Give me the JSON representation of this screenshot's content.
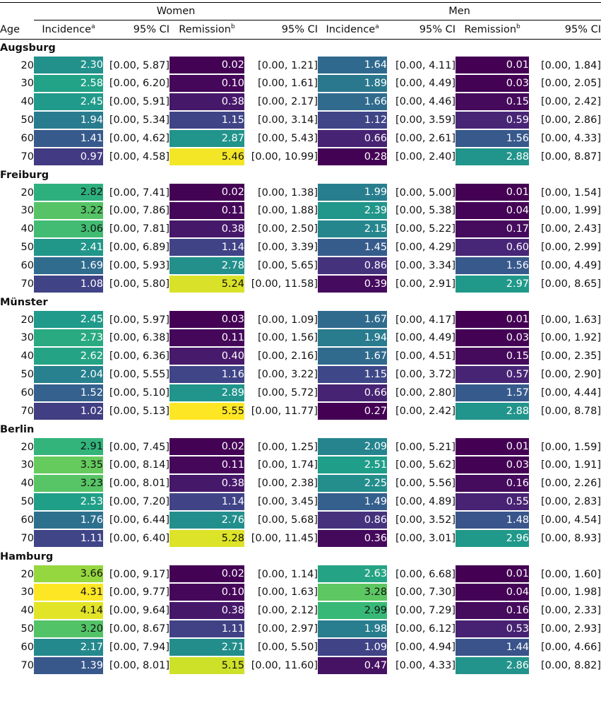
{
  "header": {
    "groups": [
      "Women",
      "Men"
    ],
    "columns": {
      "age": "Age",
      "incidence": "Incidence",
      "incidence_sup": "a",
      "ci": "95% CI",
      "remission": "Remission",
      "remission_sup": "b"
    }
  },
  "chart_data": {
    "type": "table",
    "title": "",
    "row_groups": [
      "Augsburg",
      "Freiburg",
      "Münster",
      "Berlin",
      "Hamburg"
    ],
    "ages": [
      "20",
      "30",
      "40",
      "50",
      "60",
      "70"
    ],
    "color_encoding": {
      "incidence_range": [
        0.27,
        4.31
      ],
      "remission_range": [
        0.01,
        5.55
      ],
      "palette": [
        "#440154",
        "#482878",
        "#3e4989",
        "#31688e",
        "#26828e",
        "#1f9e89",
        "#35b779",
        "#6ece58",
        "#b5de2b",
        "#fde725"
      ]
    },
    "rows": [
      {
        "city": "Augsburg",
        "rows": [
          {
            "age": "20",
            "w_inc": "2.30",
            "w_inc_ci": "[0.00, 5.87]",
            "w_rem": "0.02",
            "w_rem_ci": "[0.00, 1.21]",
            "m_inc": "1.64",
            "m_inc_ci": "[0.00, 4.11]",
            "m_rem": "0.01",
            "m_rem_ci": "[0.00, 1.84]"
          },
          {
            "age": "30",
            "w_inc": "2.58",
            "w_inc_ci": "[0.00, 6.20]",
            "w_rem": "0.10",
            "w_rem_ci": "[0.00, 1.61]",
            "m_inc": "1.89",
            "m_inc_ci": "[0.00, 4.49]",
            "m_rem": "0.03",
            "m_rem_ci": "[0.00, 2.05]"
          },
          {
            "age": "40",
            "w_inc": "2.45",
            "w_inc_ci": "[0.00, 5.91]",
            "w_rem": "0.38",
            "w_rem_ci": "[0.00, 2.17]",
            "m_inc": "1.66",
            "m_inc_ci": "[0.00, 4.46]",
            "m_rem": "0.15",
            "m_rem_ci": "[0.00, 2.42]"
          },
          {
            "age": "50",
            "w_inc": "1.94",
            "w_inc_ci": "[0.00, 5.34]",
            "w_rem": "1.15",
            "w_rem_ci": "[0.00, 3.14]",
            "m_inc": "1.12",
            "m_inc_ci": "[0.00, 3.59]",
            "m_rem": "0.59",
            "m_rem_ci": "[0.00, 2.86]"
          },
          {
            "age": "60",
            "w_inc": "1.41",
            "w_inc_ci": "[0.00, 4.62]",
            "w_rem": "2.87",
            "w_rem_ci": "[0.00, 5.43]",
            "m_inc": "0.66",
            "m_inc_ci": "[0.00, 2.61]",
            "m_rem": "1.56",
            "m_rem_ci": "[0.00, 4.33]"
          },
          {
            "age": "70",
            "w_inc": "0.97",
            "w_inc_ci": "[0.00, 4.58]",
            "w_rem": "5.46",
            "w_rem_ci": "[0.00, 10.99]",
            "m_inc": "0.28",
            "m_inc_ci": "[0.00, 2.40]",
            "m_rem": "2.88",
            "m_rem_ci": "[0.00, 8.87]"
          }
        ]
      },
      {
        "city": "Freiburg",
        "rows": [
          {
            "age": "20",
            "w_inc": "2.82",
            "w_inc_ci": "[0.00, 7.41]",
            "w_rem": "0.02",
            "w_rem_ci": "[0.00, 1.38]",
            "m_inc": "1.99",
            "m_inc_ci": "[0.00, 5.00]",
            "m_rem": "0.01",
            "m_rem_ci": "[0.00, 1.54]"
          },
          {
            "age": "30",
            "w_inc": "3.22",
            "w_inc_ci": "[0.00, 7.86]",
            "w_rem": "0.11",
            "w_rem_ci": "[0.00, 1.88]",
            "m_inc": "2.39",
            "m_inc_ci": "[0.00, 5.38]",
            "m_rem": "0.04",
            "m_rem_ci": "[0.00, 1.99]"
          },
          {
            "age": "40",
            "w_inc": "3.06",
            "w_inc_ci": "[0.00, 7.81]",
            "w_rem": "0.38",
            "w_rem_ci": "[0.00, 2.50]",
            "m_inc": "2.15",
            "m_inc_ci": "[0.00, 5.22]",
            "m_rem": "0.17",
            "m_rem_ci": "[0.00, 2.43]"
          },
          {
            "age": "50",
            "w_inc": "2.41",
            "w_inc_ci": "[0.00, 6.89]",
            "w_rem": "1.14",
            "w_rem_ci": "[0.00, 3.39]",
            "m_inc": "1.45",
            "m_inc_ci": "[0.00, 4.29]",
            "m_rem": "0.60",
            "m_rem_ci": "[0.00, 2.99]"
          },
          {
            "age": "60",
            "w_inc": "1.69",
            "w_inc_ci": "[0.00, 5.93]",
            "w_rem": "2.78",
            "w_rem_ci": "[0.00, 5.65]",
            "m_inc": "0.86",
            "m_inc_ci": "[0.00, 3.34]",
            "m_rem": "1.56",
            "m_rem_ci": "[0.00, 4.49]"
          },
          {
            "age": "70",
            "w_inc": "1.08",
            "w_inc_ci": "[0.00, 5.80]",
            "w_rem": "5.24",
            "w_rem_ci": "[0.00, 11.58]",
            "m_inc": "0.39",
            "m_inc_ci": "[0.00, 2.91]",
            "m_rem": "2.97",
            "m_rem_ci": "[0.00, 8.65]"
          }
        ]
      },
      {
        "city": "Münster",
        "rows": [
          {
            "age": "20",
            "w_inc": "2.45",
            "w_inc_ci": "[0.00, 5.97]",
            "w_rem": "0.03",
            "w_rem_ci": "[0.00, 1.09]",
            "m_inc": "1.67",
            "m_inc_ci": "[0.00, 4.17]",
            "m_rem": "0.01",
            "m_rem_ci": "[0.00, 1.63]"
          },
          {
            "age": "30",
            "w_inc": "2.73",
            "w_inc_ci": "[0.00, 6.38]",
            "w_rem": "0.11",
            "w_rem_ci": "[0.00, 1.56]",
            "m_inc": "1.94",
            "m_inc_ci": "[0.00, 4.49]",
            "m_rem": "0.03",
            "m_rem_ci": "[0.00, 1.92]"
          },
          {
            "age": "40",
            "w_inc": "2.62",
            "w_inc_ci": "[0.00, 6.36]",
            "w_rem": "0.40",
            "w_rem_ci": "[0.00, 2.16]",
            "m_inc": "1.67",
            "m_inc_ci": "[0.00, 4.51]",
            "m_rem": "0.15",
            "m_rem_ci": "[0.00, 2.35]"
          },
          {
            "age": "50",
            "w_inc": "2.04",
            "w_inc_ci": "[0.00, 5.55]",
            "w_rem": "1.16",
            "w_rem_ci": "[0.00, 3.22]",
            "m_inc": "1.15",
            "m_inc_ci": "[0.00, 3.72]",
            "m_rem": "0.57",
            "m_rem_ci": "[0.00, 2.90]"
          },
          {
            "age": "60",
            "w_inc": "1.52",
            "w_inc_ci": "[0.00, 5.10]",
            "w_rem": "2.89",
            "w_rem_ci": "[0.00, 5.72]",
            "m_inc": "0.66",
            "m_inc_ci": "[0.00, 2.80]",
            "m_rem": "1.57",
            "m_rem_ci": "[0.00, 4.44]"
          },
          {
            "age": "70",
            "w_inc": "1.02",
            "w_inc_ci": "[0.00, 5.13]",
            "w_rem": "5.55",
            "w_rem_ci": "[0.00, 11.77]",
            "m_inc": "0.27",
            "m_inc_ci": "[0.00, 2.42]",
            "m_rem": "2.88",
            "m_rem_ci": "[0.00, 8.78]"
          }
        ]
      },
      {
        "city": "Berlin",
        "rows": [
          {
            "age": "20",
            "w_inc": "2.91",
            "w_inc_ci": "[0.00, 7.45]",
            "w_rem": "0.02",
            "w_rem_ci": "[0.00, 1.25]",
            "m_inc": "2.09",
            "m_inc_ci": "[0.00, 5.21]",
            "m_rem": "0.01",
            "m_rem_ci": "[0.00, 1.59]"
          },
          {
            "age": "30",
            "w_inc": "3.35",
            "w_inc_ci": "[0.00, 8.14]",
            "w_rem": "0.11",
            "w_rem_ci": "[0.00, 1.74]",
            "m_inc": "2.51",
            "m_inc_ci": "[0.00, 5.62]",
            "m_rem": "0.03",
            "m_rem_ci": "[0.00, 1.91]"
          },
          {
            "age": "40",
            "w_inc": "3.23",
            "w_inc_ci": "[0.00, 8.01]",
            "w_rem": "0.38",
            "w_rem_ci": "[0.00, 2.38]",
            "m_inc": "2.25",
            "m_inc_ci": "[0.00, 5.56]",
            "m_rem": "0.16",
            "m_rem_ci": "[0.00, 2.26]"
          },
          {
            "age": "50",
            "w_inc": "2.53",
            "w_inc_ci": "[0.00, 7.20]",
            "w_rem": "1.14",
            "w_rem_ci": "[0.00, 3.45]",
            "m_inc": "1.49",
            "m_inc_ci": "[0.00, 4.89]",
            "m_rem": "0.55",
            "m_rem_ci": "[0.00, 2.83]"
          },
          {
            "age": "60",
            "w_inc": "1.76",
            "w_inc_ci": "[0.00, 6.44]",
            "w_rem": "2.76",
            "w_rem_ci": "[0.00, 5.68]",
            "m_inc": "0.86",
            "m_inc_ci": "[0.00, 3.52]",
            "m_rem": "1.48",
            "m_rem_ci": "[0.00, 4.54]"
          },
          {
            "age": "70",
            "w_inc": "1.11",
            "w_inc_ci": "[0.00, 6.40]",
            "w_rem": "5.28",
            "w_rem_ci": "[0.00, 11.45]",
            "m_inc": "0.36",
            "m_inc_ci": "[0.00, 3.01]",
            "m_rem": "2.96",
            "m_rem_ci": "[0.00, 8.93]"
          }
        ]
      },
      {
        "city": "Hamburg",
        "rows": [
          {
            "age": "20",
            "w_inc": "3.66",
            "w_inc_ci": "[0.00, 9.17]",
            "w_rem": "0.02",
            "w_rem_ci": "[0.00, 1.14]",
            "m_inc": "2.63",
            "m_inc_ci": "[0.00, 6.68]",
            "m_rem": "0.01",
            "m_rem_ci": "[0.00, 1.60]"
          },
          {
            "age": "30",
            "w_inc": "4.31",
            "w_inc_ci": "[0.00, 9.77]",
            "w_rem": "0.10",
            "w_rem_ci": "[0.00, 1.63]",
            "m_inc": "3.28",
            "m_inc_ci": "[0.00, 7.30]",
            "m_rem": "0.04",
            "m_rem_ci": "[0.00, 1.98]"
          },
          {
            "age": "40",
            "w_inc": "4.14",
            "w_inc_ci": "[0.00, 9.64]",
            "w_rem": "0.38",
            "w_rem_ci": "[0.00, 2.12]",
            "m_inc": "2.99",
            "m_inc_ci": "[0.00, 7.29]",
            "m_rem": "0.16",
            "m_rem_ci": "[0.00, 2.33]"
          },
          {
            "age": "50",
            "w_inc": "3.20",
            "w_inc_ci": "[0.00, 8.67]",
            "w_rem": "1.11",
            "w_rem_ci": "[0.00, 2.97]",
            "m_inc": "1.98",
            "m_inc_ci": "[0.00, 6.12]",
            "m_rem": "0.53",
            "m_rem_ci": "[0.00, 2.93]"
          },
          {
            "age": "60",
            "w_inc": "2.17",
            "w_inc_ci": "[0.00, 7.94]",
            "w_rem": "2.71",
            "w_rem_ci": "[0.00, 5.50]",
            "m_inc": "1.09",
            "m_inc_ci": "[0.00, 4.94]",
            "m_rem": "1.44",
            "m_rem_ci": "[0.00, 4.66]"
          },
          {
            "age": "70",
            "w_inc": "1.39",
            "w_inc_ci": "[0.00, 8.01]",
            "w_rem": "5.15",
            "w_rem_ci": "[0.00, 11.60]",
            "m_inc": "0.47",
            "m_inc_ci": "[0.00, 4.33]",
            "m_rem": "2.86",
            "m_rem_ci": "[0.00, 8.82]"
          }
        ]
      }
    ]
  }
}
